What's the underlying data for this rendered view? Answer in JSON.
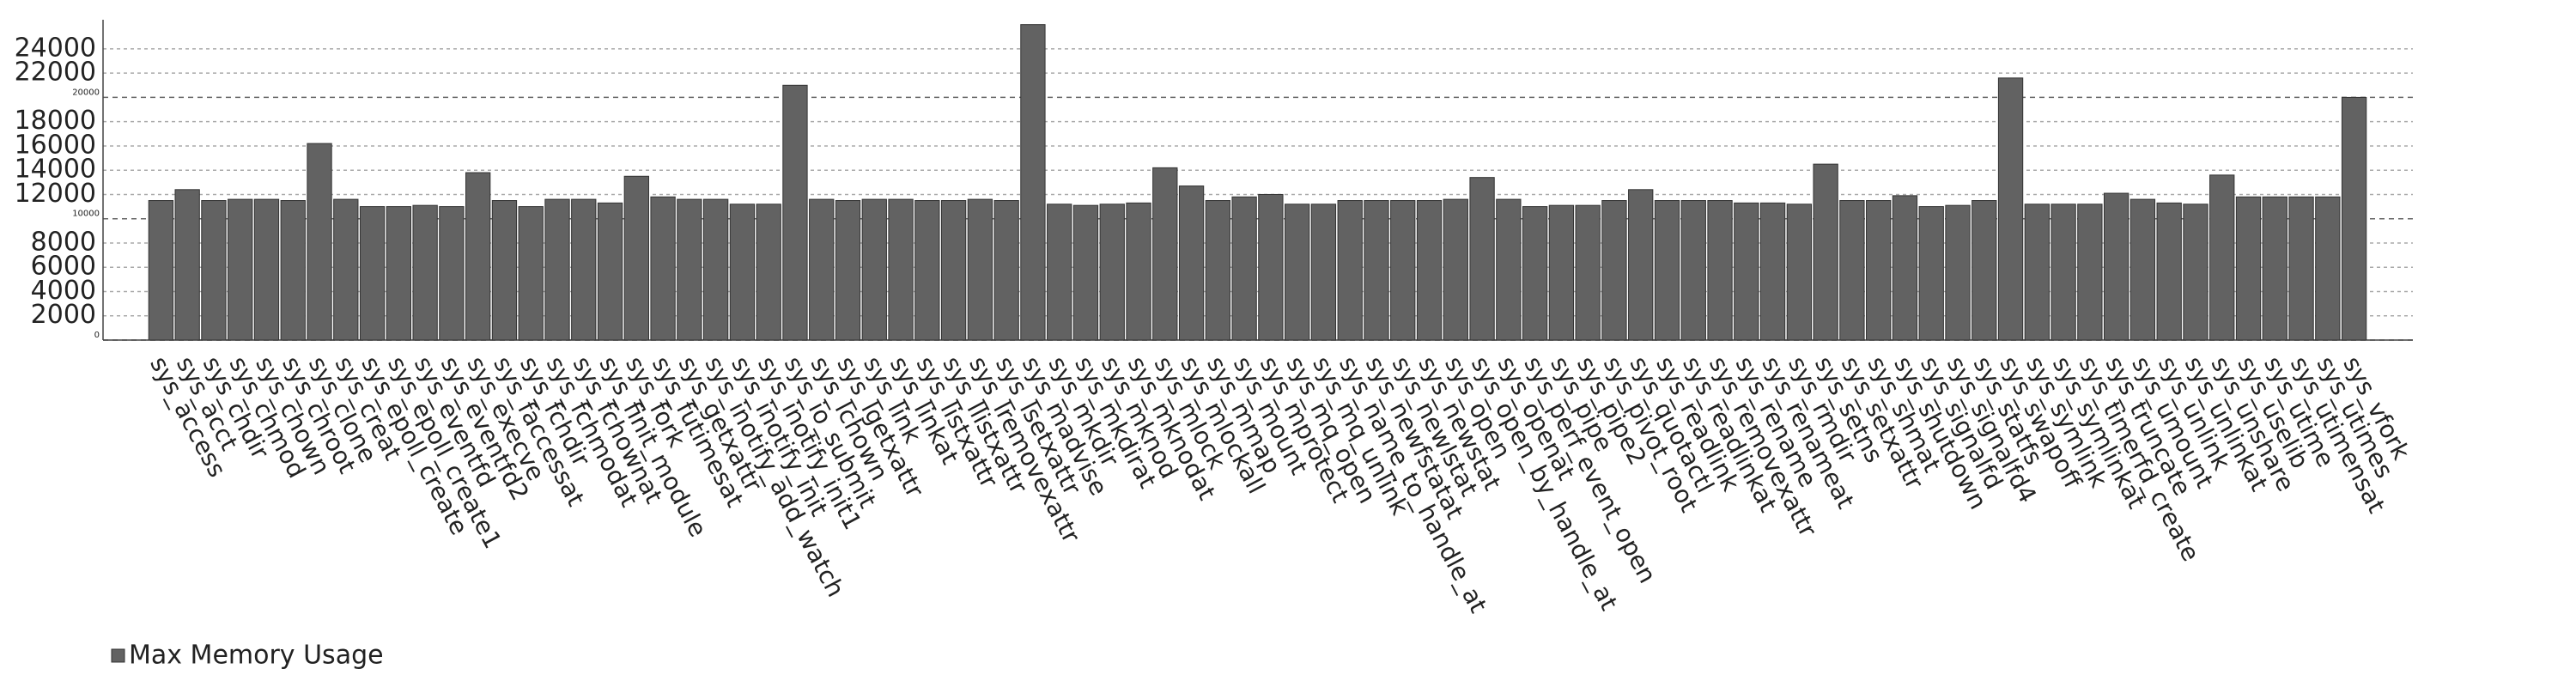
{
  "chart_data": {
    "type": "bar",
    "categories": [
      "sys_access",
      "sys_acct",
      "sys_chdir",
      "sys_chmod",
      "sys_chown",
      "sys_chroot",
      "sys_clone",
      "sys_creat",
      "sys_epoll_create",
      "sys_epoll_create1",
      "sys_eventfd",
      "sys_eventfd2",
      "sys_execve",
      "sys_faccessat",
      "sys_fchdir",
      "sys_fchmodat",
      "sys_fchownat",
      "sys_finit_module",
      "sys_fork",
      "sys_futimesat",
      "sys_getxattr",
      "sys_inotify_add_watch",
      "sys_inotify_init",
      "sys_inotify_init1",
      "sys_io_submit",
      "sys_lchown",
      "sys_lgetxattr",
      "sys_link",
      "sys_linkat",
      "sys_listxattr",
      "sys_llistxattr",
      "sys_lremovexattr",
      "sys_lsetxattr",
      "sys_madvise",
      "sys_mkdir",
      "sys_mkdirat",
      "sys_mknod",
      "sys_mknodat",
      "sys_mlock",
      "sys_mlockall",
      "sys_mmap",
      "sys_mount",
      "sys_mprotect",
      "sys_mq_open",
      "sys_mq_unlink",
      "sys_name_to_handle_at",
      "sys_newfstatat",
      "sys_newlstat",
      "sys_newstat",
      "sys_open",
      "sys_open_by_handle_at",
      "sys_openat",
      "sys_perf_event_open",
      "sys_pipe",
      "sys_pipe2",
      "sys_pivot_root",
      "sys_quotactl",
      "sys_readlink",
      "sys_readlinkat",
      "sys_removexattr",
      "sys_rename",
      "sys_renameat",
      "sys_rmdir",
      "sys_setns",
      "sys_setxattr",
      "sys_shmat",
      "sys_shutdown",
      "sys_signalfd",
      "sys_signalfd4",
      "sys_statfs",
      "sys_swapoff",
      "sys_symlink",
      "sys_symlinkat",
      "sys_timerfd_create",
      "sys_truncate",
      "sys_umount",
      "sys_unlink",
      "sys_unlinkat",
      "sys_unshare",
      "sys_uselib",
      "sys_utime",
      "sys_utimensat",
      "sys_utimes",
      "sys_vfork"
    ],
    "series": [
      {
        "name": "Max Memory Usage",
        "color": "#626262",
        "values": [
          11500,
          12400,
          11500,
          11600,
          11600,
          11500,
          16200,
          11600,
          11000,
          11000,
          11100,
          11000,
          13800,
          11500,
          11000,
          11600,
          11600,
          11300,
          13500,
          11800,
          11600,
          11600,
          11200,
          11200,
          21000,
          11600,
          11500,
          11600,
          11600,
          11500,
          11500,
          11600,
          11500,
          26000,
          11200,
          11100,
          11200,
          11300,
          14200,
          12700,
          11500,
          11800,
          12000,
          11200,
          11200,
          11500,
          11500,
          11500,
          11500,
          11600,
          13400,
          11600,
          11000,
          11100,
          11100,
          11500,
          12400,
          11500,
          11500,
          11500,
          11300,
          11300,
          11200,
          14500,
          11500,
          11500,
          11900,
          11000,
          11100,
          11500,
          21600,
          11200,
          11200,
          11200,
          12100,
          11600,
          11300,
          11200,
          13600,
          11800,
          11800,
          11800,
          11800,
          20000
        ]
      }
    ],
    "ylim": [
      0,
      26400
    ],
    "yticks": [
      2000,
      4000,
      6000,
      8000,
      12000,
      14000,
      16000,
      18000,
      22000,
      24000
    ],
    "yticks_small": [
      0,
      10000,
      20000
    ],
    "grid": true
  }
}
